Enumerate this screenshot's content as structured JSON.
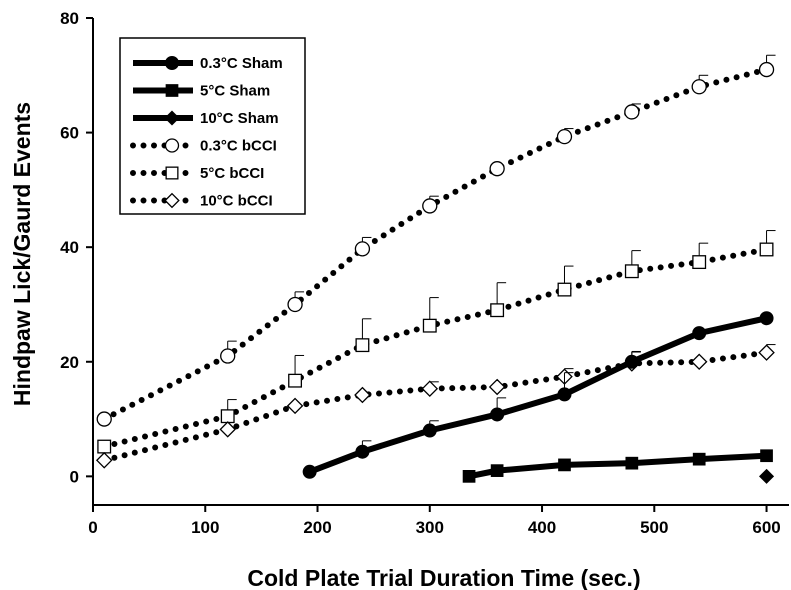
{
  "chart_data": {
    "type": "line",
    "title": "",
    "xlabel": "Cold Plate Trial Duration Time (sec.)",
    "ylabel": "Hindpaw Lick/Gaurd Events",
    "xlim": [
      0,
      620
    ],
    "ylim": [
      -5,
      80
    ],
    "x_ticks": [
      0,
      100,
      200,
      300,
      400,
      500,
      600
    ],
    "y_ticks": [
      0,
      20,
      40,
      60,
      80
    ],
    "grid": false,
    "legend_position": "top-left",
    "series": [
      {
        "name": "0.3°C Sham",
        "line": "solid",
        "marker": "circle",
        "fill": "#000000",
        "x": [
          193,
          240,
          300,
          360,
          420,
          480,
          540,
          600
        ],
        "y": [
          0.8,
          4.3,
          8.0,
          10.8,
          14.3,
          20.0,
          25.0,
          27.6
        ],
        "err": [
          0,
          1.9,
          1.7,
          2.9,
          3.8,
          1.8,
          0,
          0
        ]
      },
      {
        "name": "5°C Sham",
        "line": "solid",
        "marker": "square",
        "fill": "#000000",
        "x": [
          335,
          360,
          420,
          480,
          540,
          600
        ],
        "y": [
          0,
          1.0,
          2.0,
          2.3,
          3.0,
          3.6
        ],
        "err": [
          0,
          0,
          0,
          0,
          0,
          0
        ]
      },
      {
        "name": "10°C Sham",
        "line": "solid",
        "marker": "diamond",
        "fill": "#000000",
        "x": [
          600
        ],
        "y": [
          0
        ],
        "err": [
          0
        ]
      },
      {
        "name": "0.3°C bCCI",
        "line": "dotted",
        "marker": "circle",
        "fill": "#ffffff",
        "x": [
          10,
          120,
          180,
          240,
          300,
          360,
          420,
          480,
          540,
          600
        ],
        "y": [
          10.0,
          21.0,
          30.0,
          39.7,
          47.2,
          53.7,
          59.3,
          63.6,
          68.0,
          71.0
        ],
        "err": [
          0,
          2.6,
          2.2,
          2.0,
          1.7,
          0,
          1.4,
          1.4,
          2.0,
          2.5
        ]
      },
      {
        "name": "5°C bCCI",
        "line": "dotted",
        "marker": "square",
        "fill": "#ffffff",
        "x": [
          10,
          120,
          180,
          240,
          300,
          360,
          420,
          480,
          540,
          600
        ],
        "y": [
          5.2,
          10.5,
          16.7,
          22.9,
          26.3,
          29.0,
          32.6,
          35.8,
          37.4,
          39.6
        ],
        "err": [
          0,
          2.9,
          4.4,
          4.6,
          4.9,
          4.8,
          4.1,
          3.6,
          3.3,
          3.3
        ]
      },
      {
        "name": "10°C bCCI",
        "line": "dotted",
        "marker": "diamond",
        "fill": "#ffffff",
        "x": [
          10,
          120,
          180,
          240,
          300,
          360,
          420,
          480,
          540,
          600
        ],
        "y": [
          2.8,
          8.2,
          12.3,
          14.2,
          15.3,
          15.6,
          17.4,
          19.7,
          20.0,
          21.6
        ],
        "err": [
          0,
          0,
          0,
          0,
          1.2,
          0,
          1.4,
          2.0,
          0,
          1.4
        ]
      }
    ]
  }
}
